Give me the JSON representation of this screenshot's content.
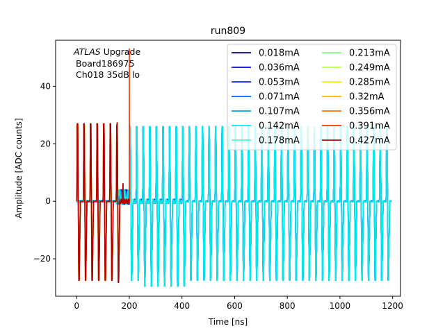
{
  "chart_data": {
    "type": "line",
    "title": "run809",
    "xlabel": "Time [ns]",
    "ylabel": "Amplitude [ADC counts]",
    "xlim": [
      -80,
      1230
    ],
    "ylim": [
      -33,
      56
    ],
    "xticks": [
      0,
      200,
      400,
      600,
      800,
      1000,
      1200
    ],
    "yticks": [
      -20,
      0,
      20,
      40
    ],
    "grid": false,
    "legend_placement": "top-right",
    "legend_columns": 2,
    "annotation": {
      "line1_italic": "ATLAS",
      "line1_rest": " Upgrade",
      "line2": "Board186975",
      "line3": "Ch018 35dB lo"
    },
    "pulse_train": {
      "period_ns": 25,
      "early": {
        "t_end": 175,
        "high": 27,
        "low": -27.5
      },
      "late": {
        "t_start": 200,
        "t_end": 1195,
        "high": 26,
        "low": -27.5,
        "low_min": -29.5
      },
      "spike_t": 200,
      "spike_value": 53
    },
    "series": [
      {
        "name": "0.018mA",
        "color": "#00008f"
      },
      {
        "name": "0.036mA",
        "color": "#0000e0"
      },
      {
        "name": "0.053mA",
        "color": "#0020ff"
      },
      {
        "name": "0.071mA",
        "color": "#0060ff"
      },
      {
        "name": "0.107mA",
        "color": "#00a0e0"
      },
      {
        "name": "0.142mA",
        "color": "#00e8f0"
      },
      {
        "name": "0.178mA",
        "color": "#40ffc0"
      },
      {
        "name": "0.213mA",
        "color": "#80ff80"
      },
      {
        "name": "0.249mA",
        "color": "#b8ff40"
      },
      {
        "name": "0.285mA",
        "color": "#f0f000"
      },
      {
        "name": "0.32mA",
        "color": "#ffb000"
      },
      {
        "name": "0.356mA",
        "color": "#ff7000"
      },
      {
        "name": "0.391mA",
        "color": "#ff3000"
      },
      {
        "name": "0.427mA",
        "color": "#b00000"
      }
    ]
  }
}
